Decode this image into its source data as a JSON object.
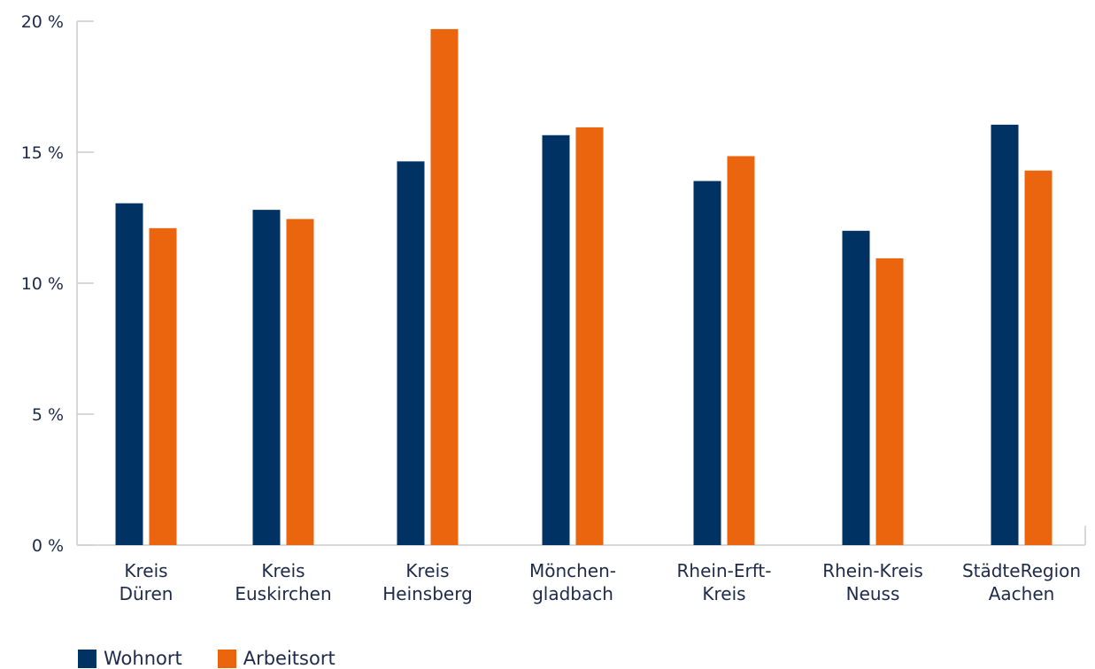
{
  "chart_data": {
    "type": "bar",
    "categories": [
      [
        "Kreis",
        "Düren"
      ],
      [
        "Kreis",
        "Euskirchen"
      ],
      [
        "Kreis",
        "Heinsberg"
      ],
      [
        "Mönchen-",
        "gladbach"
      ],
      [
        "Rhein-Erft-",
        "Kreis"
      ],
      [
        "Rhein-Kreis",
        "Neuss"
      ],
      [
        "StädteRegion",
        "Aachen"
      ]
    ],
    "series": [
      {
        "name": "Wohnort",
        "color": "#003263",
        "values": [
          13.05,
          12.8,
          14.65,
          15.65,
          13.9,
          12.0,
          16.05
        ]
      },
      {
        "name": "Arbeitsort",
        "color": "#ea650d",
        "values": [
          12.1,
          12.45,
          19.7,
          15.95,
          14.85,
          10.95,
          14.3
        ]
      }
    ],
    "y_ticks": [
      {
        "value": 0,
        "label": "0 %"
      },
      {
        "value": 5,
        "label": "5 %"
      },
      {
        "value": 10,
        "label": "10 %"
      },
      {
        "value": 15,
        "label": "15 %"
      },
      {
        "value": 20,
        "label": "20 %"
      }
    ],
    "ylim": [
      0,
      20
    ],
    "title": "",
    "xlabel": "",
    "ylabel": "",
    "grid": false,
    "legend_position": "bottom-left",
    "axis_color": "#cccccc"
  }
}
